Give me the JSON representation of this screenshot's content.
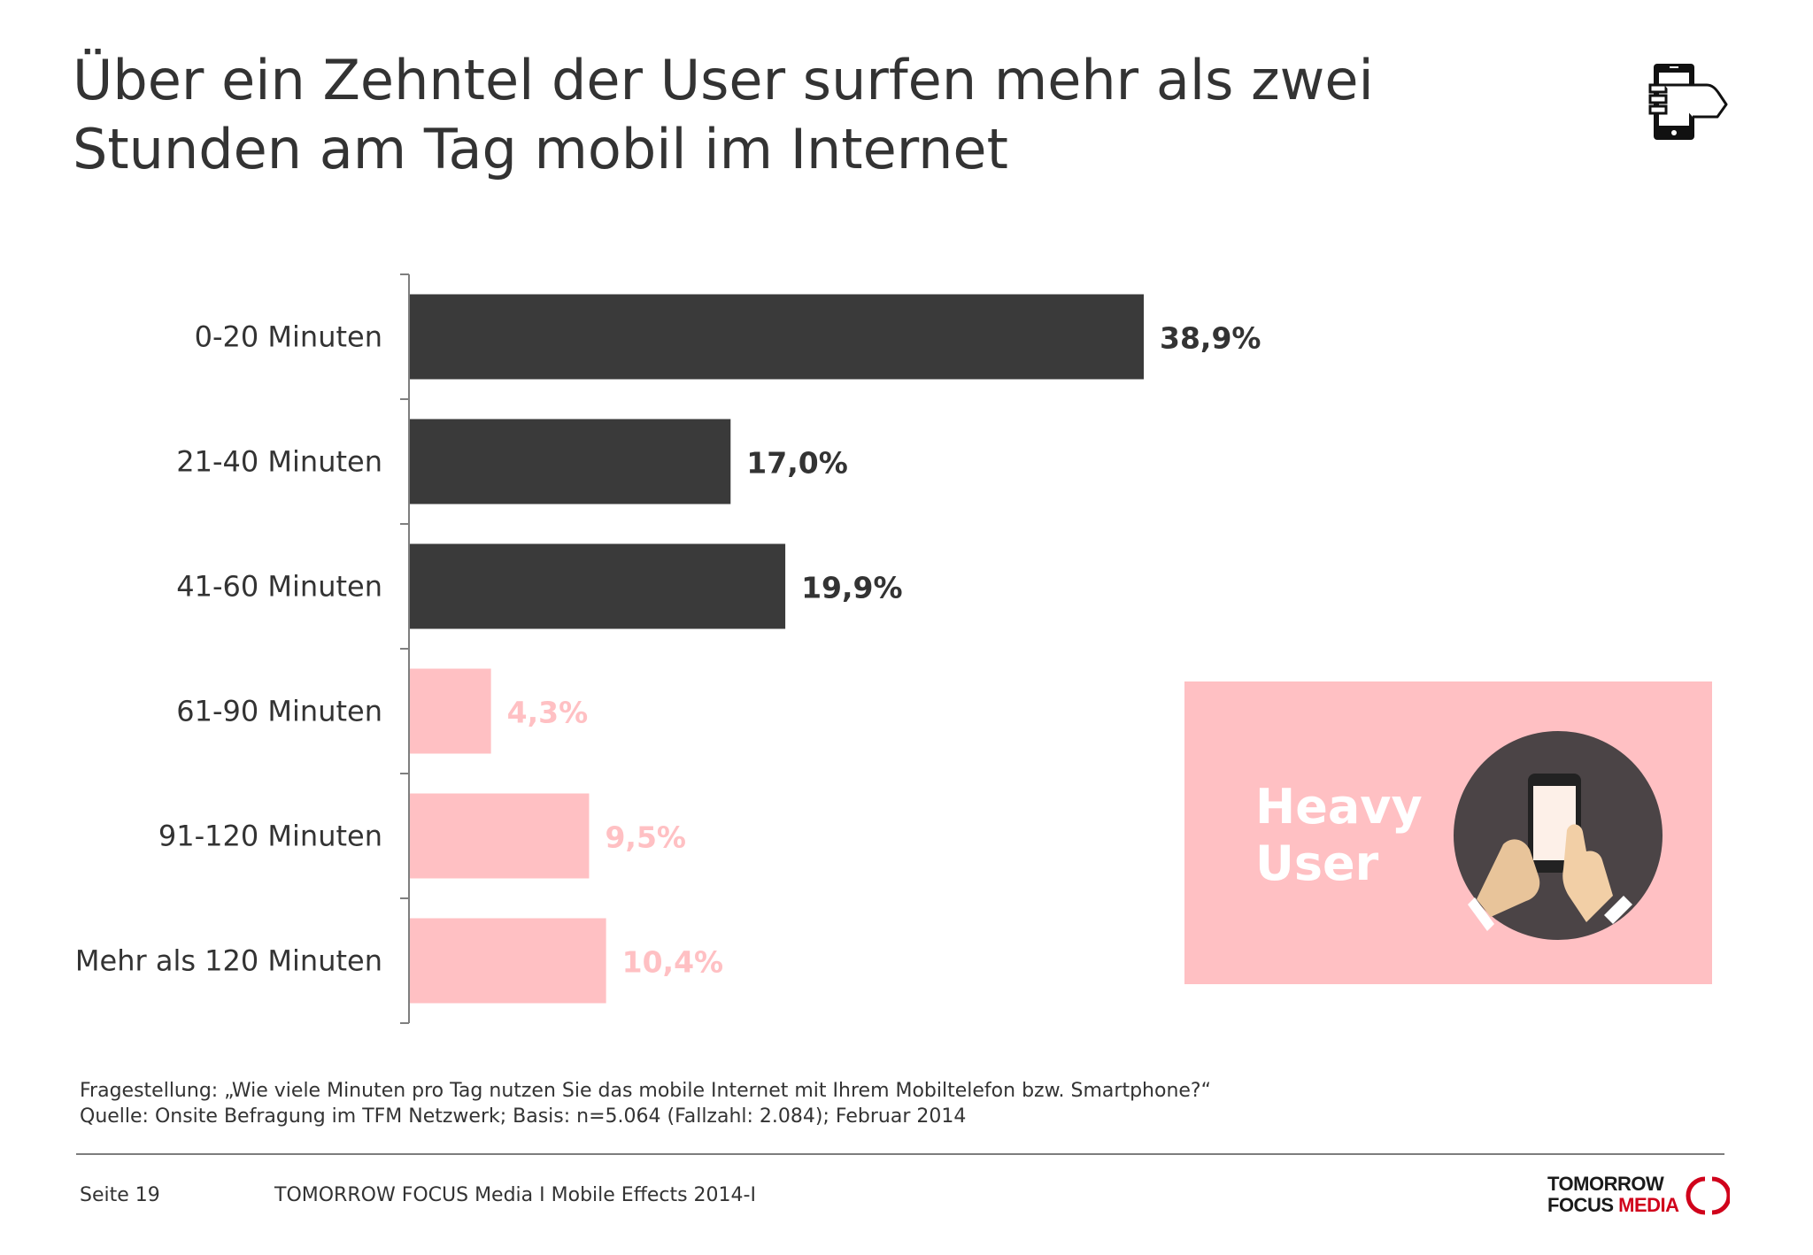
{
  "title": {
    "line1": "Über ein Zehntel der User surfen mehr als zwei",
    "line2": "Stunden am Tag mobil im Internet"
  },
  "colors": {
    "dark_bar": "#3a3a3a",
    "light_bar": "#ffc0c3",
    "dark_label": "#333333",
    "light_label": "#ffc0c3",
    "heavy_box": "#ffc0c3",
    "heavy_circle": "#4b4446"
  },
  "icons": {
    "top_right": "smartphone-touch-icon",
    "heavy_user": "hands-holding-phone-icon"
  },
  "chart_data": {
    "type": "bar",
    "orientation": "horizontal",
    "categories": [
      "0-20 Minuten",
      "21-40 Minuten",
      "41-60 Minuten",
      "61-90 Minuten",
      "91-120 Minuten",
      "Mehr als 120 Minuten"
    ],
    "values": [
      38.9,
      17.0,
      19.9,
      4.3,
      9.5,
      10.4
    ],
    "value_labels": [
      "38,9%",
      "17,0%",
      "19,9%",
      "4,3%",
      "9,5%",
      "10,4%"
    ],
    "highlight": [
      false,
      false,
      false,
      true,
      true,
      true
    ],
    "unit": "%",
    "grid": false
  },
  "callout": {
    "line1": "Heavy",
    "line2": "User"
  },
  "footnote": {
    "question": "Fragestellung: „Wie viele Minuten pro Tag nutzen Sie das mobile Internet mit Ihrem Mobiltelefon bzw. Smartphone?“",
    "source": "Quelle: Onsite Befragung im TFM Netzwerk; Basis: n=5.064 (Fallzahl: 2.084); Februar 2014"
  },
  "footer": {
    "page": "Seite 19",
    "center": "TOMORROW FOCUS Media  I  Mobile Effects 2014-I",
    "logo_line1": "TOMORROW",
    "logo_focus": "FOCUS ",
    "logo_media": "MEDIA"
  }
}
